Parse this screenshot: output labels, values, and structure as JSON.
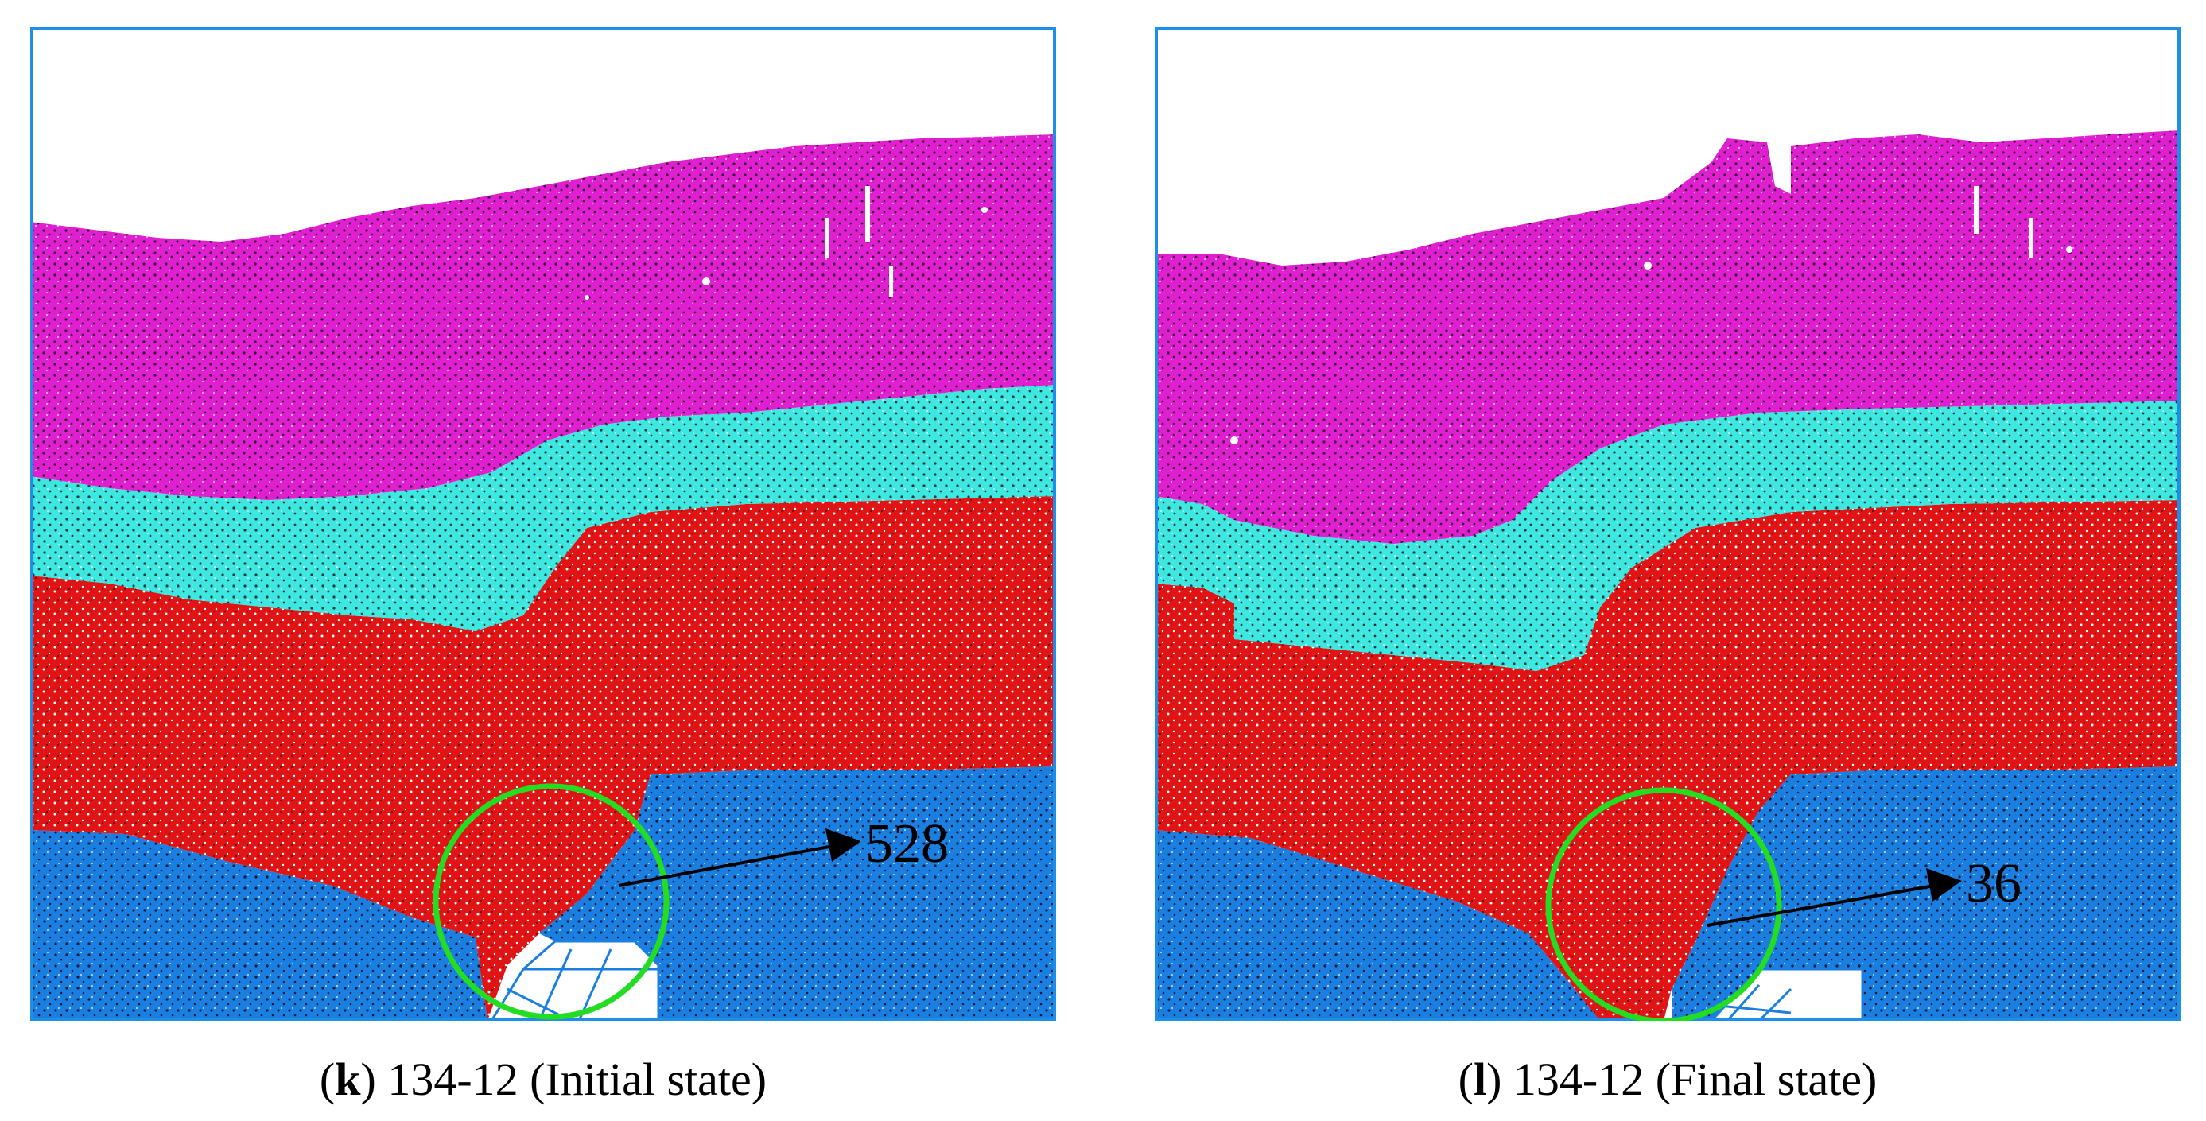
{
  "panels": [
    {
      "id": "k",
      "letter": "k",
      "caption_text": "134-12 (Initial state)",
      "annotation": "528"
    },
    {
      "id": "l",
      "letter": "l",
      "caption_text": "134-12 (Final state)",
      "annotation": "36"
    }
  ],
  "colors": {
    "frame": "#1e8fe8",
    "layer_top": "#e020d0",
    "layer_cyan": "#3ee8e0",
    "layer_red": "#e01414",
    "layer_blue": "#1a7fe0",
    "highlight_circle": "#22dd22",
    "arrow": "#000000"
  }
}
